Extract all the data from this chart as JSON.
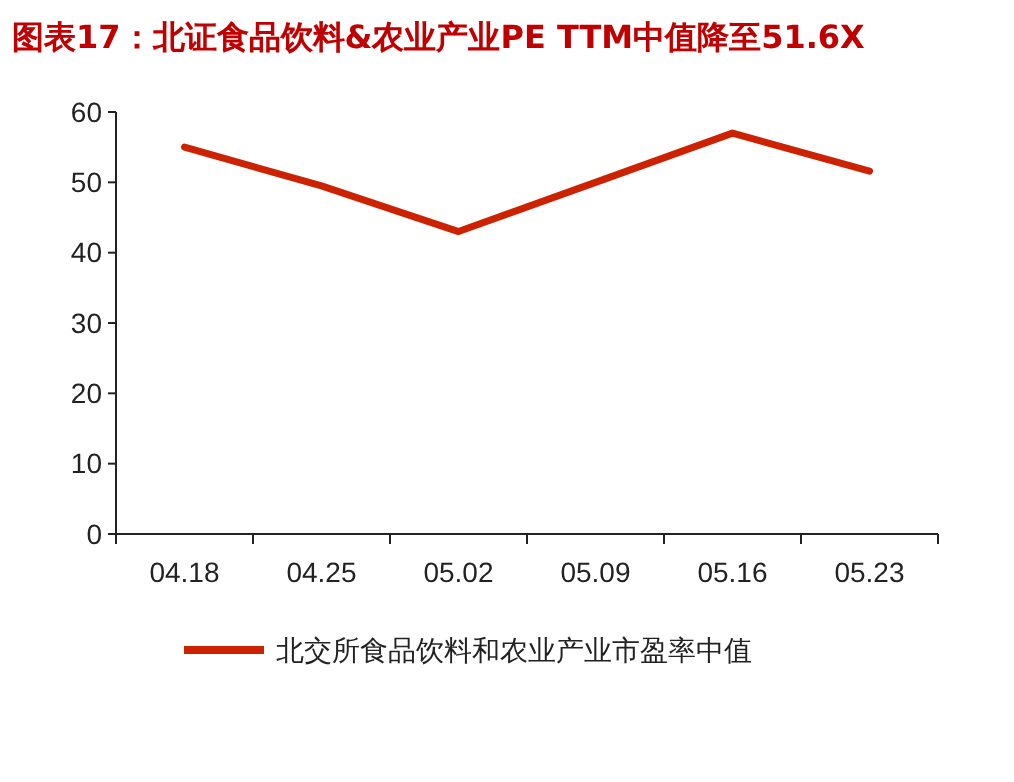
{
  "chart_data": {
    "type": "line",
    "title": "图表17：北证食品饮料&农业产业PE TTM中值降至51.6X",
    "categories": [
      "04.18",
      "04.25",
      "05.02",
      "05.09",
      "05.16",
      "05.23"
    ],
    "series": [
      {
        "name": "北交所食品饮料和农业产业市盈率中值",
        "color": "#cc2200",
        "values": [
          55,
          49.5,
          43,
          50,
          57,
          51.6
        ]
      }
    ],
    "ylim": [
      0,
      60
    ],
    "yticks": [
      0,
      10,
      20,
      30,
      40,
      50,
      60
    ],
    "grid": false,
    "legend": "bottom",
    "marker": "none",
    "line_style": "solid"
  }
}
